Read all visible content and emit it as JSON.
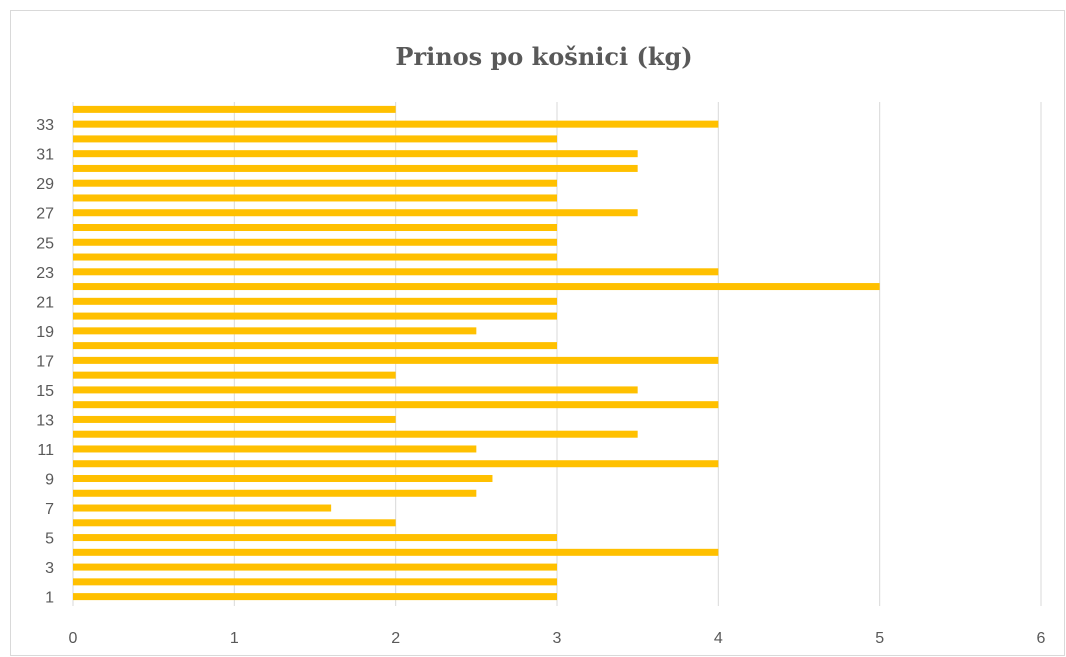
{
  "chart_data": {
    "type": "bar",
    "orientation": "horizontal",
    "title": "Prinos po košnici (kg)",
    "xlabel": "",
    "ylabel": "",
    "xlim": [
      0,
      6
    ],
    "x_ticks": [
      0,
      1,
      2,
      3,
      4,
      5,
      6
    ],
    "y_tick_labels_shown": [
      1,
      3,
      5,
      7,
      9,
      11,
      13,
      15,
      17,
      19,
      21,
      23,
      25,
      27,
      29,
      31,
      33
    ],
    "categories": [
      1,
      2,
      3,
      4,
      5,
      6,
      7,
      8,
      9,
      10,
      11,
      12,
      13,
      14,
      15,
      16,
      17,
      18,
      19,
      20,
      21,
      22,
      23,
      24,
      25,
      26,
      27,
      28,
      29,
      30,
      31,
      32,
      33,
      34
    ],
    "values": [
      3,
      3,
      3,
      4,
      3,
      2,
      1.6,
      2.5,
      2.6,
      4,
      2.5,
      3.5,
      2,
      4,
      3.5,
      2,
      4,
      3,
      2.5,
      3,
      3,
      5,
      4,
      3,
      3,
      3,
      3.5,
      3,
      3,
      3.5,
      3.5,
      3,
      4,
      2
    ],
    "bar_color": "#FFC000",
    "grid": "vertical",
    "grid_color": "#d9d9d9",
    "legend": "none"
  }
}
